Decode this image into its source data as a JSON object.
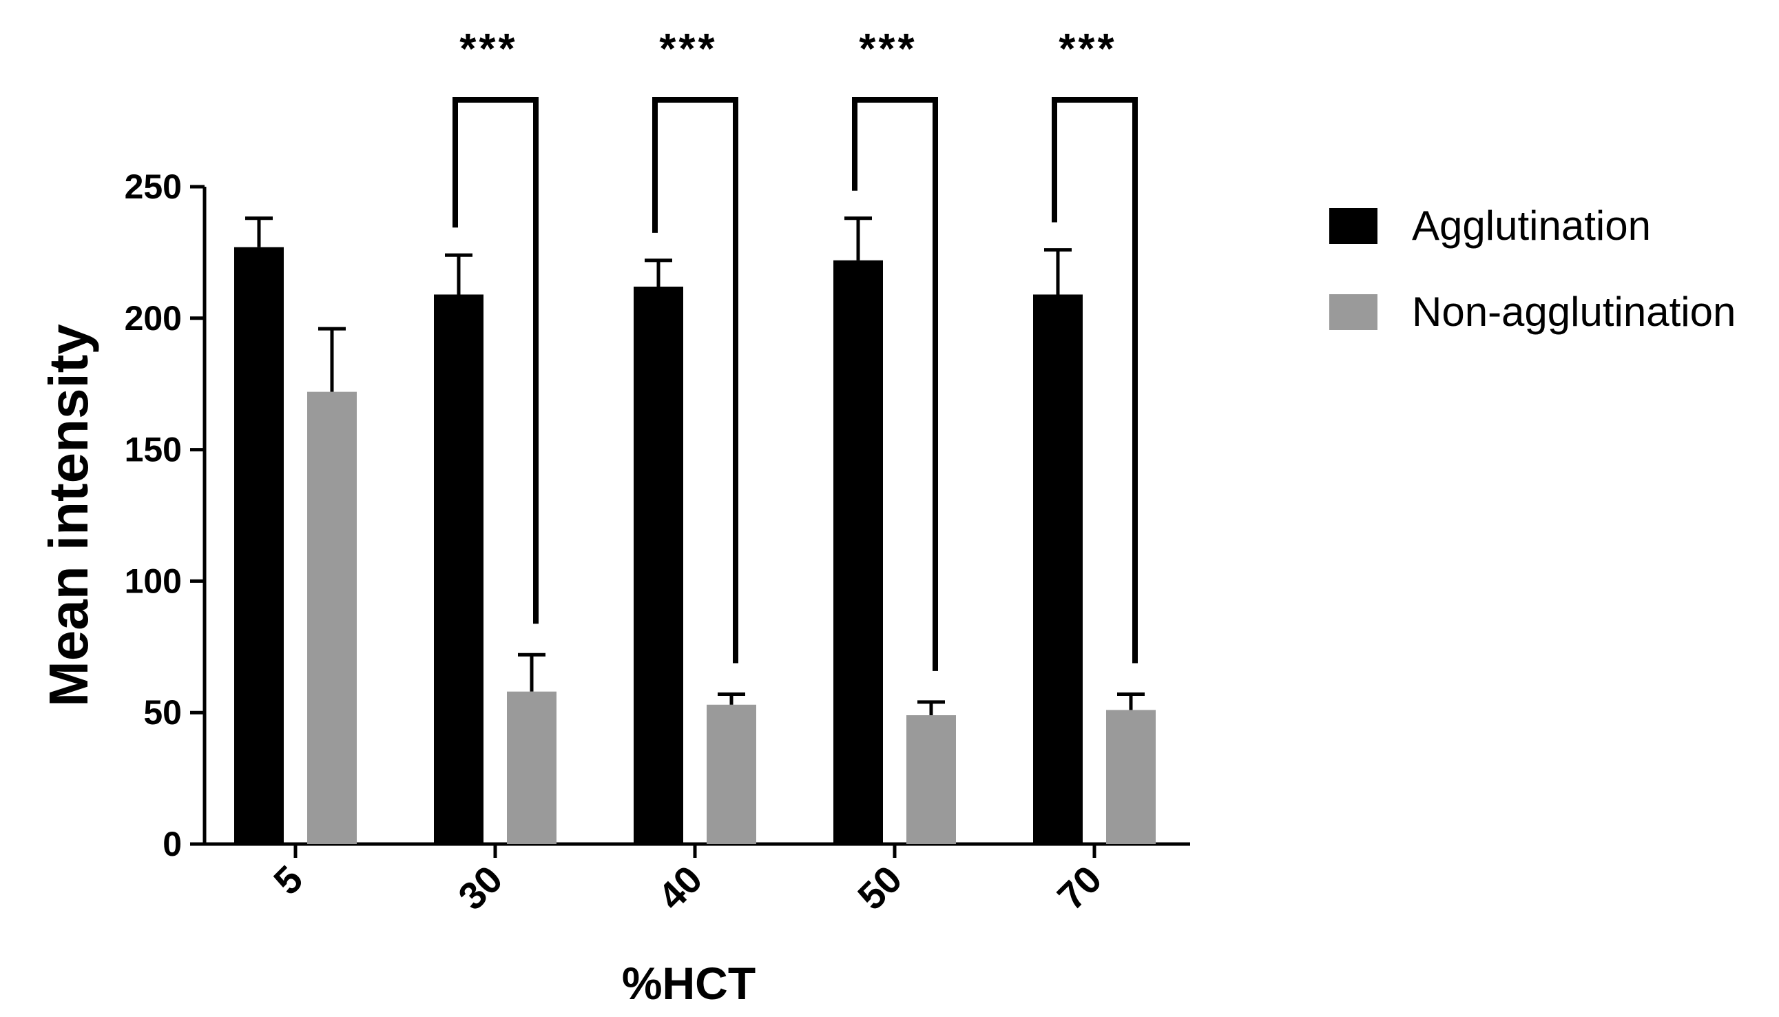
{
  "chart_data": {
    "type": "bar",
    "xlabel": "%HCT",
    "ylabel": "Mean intensity",
    "categories": [
      "5",
      "30",
      "40",
      "50",
      "70"
    ],
    "series": [
      {
        "name": "Agglutination",
        "color": "#000000",
        "values": [
          227,
          209,
          212,
          222,
          209
        ],
        "errors": [
          11,
          15,
          10,
          16,
          17
        ]
      },
      {
        "name": "Non-agglutination",
        "color": "#9a9a9a",
        "values": [
          172,
          58,
          53,
          49,
          51
        ],
        "errors": [
          24,
          14,
          4,
          5,
          6
        ]
      }
    ],
    "ylim": [
      0,
      250
    ],
    "yticks": [
      0,
      50,
      100,
      150,
      200,
      250
    ],
    "grid": false,
    "legend_position": "right",
    "annotations": [
      {
        "category": "30",
        "text": "***"
      },
      {
        "category": "40",
        "text": "***"
      },
      {
        "category": "50",
        "text": "***"
      },
      {
        "category": "70",
        "text": "***"
      }
    ]
  }
}
